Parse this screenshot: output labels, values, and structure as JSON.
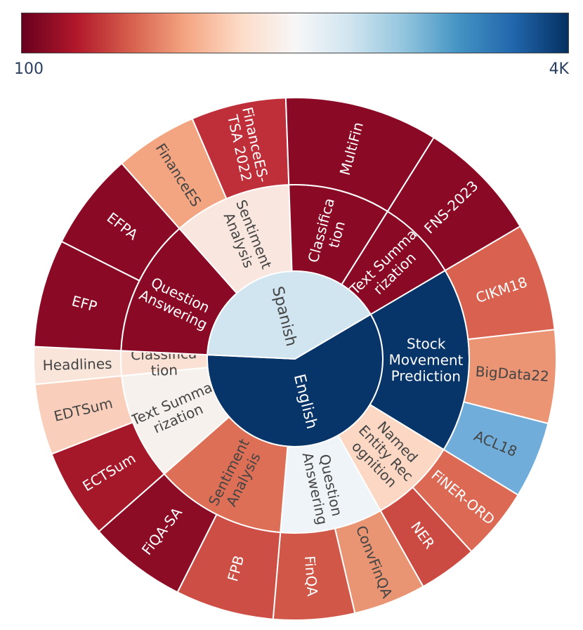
{
  "colorscale": {
    "min_label": "100",
    "max_label": "4K",
    "stops": [
      "#67001f",
      "#b2182b",
      "#d6604d",
      "#f4a582",
      "#fddbc7",
      "#f7f7f7",
      "#d1e5f0",
      "#92c5de",
      "#4393c3",
      "#2166ac",
      "#053061"
    ]
  },
  "chart_data": {
    "type": "sunburst",
    "title": "",
    "root": {
      "children": [
        {
          "label": "English",
          "fraction": 0.5922,
          "color": "#073469",
          "children": [
            {
              "label": "Stock Movement Prediction",
              "lines": [
                "Stock",
                "Movement",
                "Prediction"
              ],
              "fraction": 0.1719,
              "color": "#073469",
              "children": [
                {
                  "label": "CIKM18",
                  "fraction": 0.0668,
                  "color": "#d96150"
                },
                {
                  "label": "BigData22",
                  "fraction": 0.0577,
                  "color": "#eb9574"
                },
                {
                  "label": "ACL18",
                  "fraction": 0.0476,
                  "color": "#70addb"
                }
              ]
            },
            {
              "label": "Named Entity Recognition",
              "lines": [
                "Named",
                "Entity Rec",
                "ognition"
              ],
              "fraction": 0.0812,
              "color": "#fbd7c4",
              "children": [
                {
                  "label": "FiNER-ORD",
                  "fraction": 0.0448,
                  "color": "#dc6954"
                },
                {
                  "label": "NER",
                  "fraction": 0.0364,
                  "color": "#cb4a42"
                }
              ]
            },
            {
              "label": "Question Answering",
              "lines": [
                "Question",
                "Answering"
              ],
              "fraction": 0.095,
              "color": "#eef4f7",
              "children": [
                {
                  "label": "ConvFinQA",
                  "fraction": 0.0448,
                  "color": "#e99574"
                },
                {
                  "label": "FinQA",
                  "fraction": 0.0502,
                  "color": "#d15848"
                }
              ]
            },
            {
              "label": "Sentiment Analysis",
              "lines": [
                "Sentiment",
                "Analysis"
              ],
              "fraction": 0.1218,
              "color": "#dd6f56",
              "children": [
                {
                  "label": "FPB",
                  "fraction": 0.0609,
                  "color": "#cd4e45"
                },
                {
                  "label": "FiQA-SA",
                  "fraction": 0.0609,
                  "color": "#8c0c26"
                }
              ]
            },
            {
              "label": "Text Summarization",
              "lines": [
                "Text Summa",
                "rization"
              ],
              "fraction": 0.0993,
              "color": "#f7f1ee",
              "children": [
                {
                  "label": "ECTSum",
                  "fraction": 0.0555,
                  "color": "#a51829"
                },
                {
                  "label": "EDTSum",
                  "fraction": 0.0438,
                  "color": "#f9cfbb"
                }
              ]
            },
            {
              "label": "Classification",
              "lines": [
                "Classifica",
                "tion"
              ],
              "fraction": 0.023,
              "color": "#fbe1d3",
              "children": [
                {
                  "label": "Headlines",
                  "fraction": 0.023,
                  "color": "#fae5da"
                }
              ]
            }
          ]
        },
        {
          "label": "Spanish",
          "fraction": 0.4078,
          "color": "#d1e5f0",
          "children": [
            {
              "label": "Question Answering",
              "lines": [
                "Question",
                "Answering"
              ],
              "fraction": 0.1271,
              "color": "#8a0a26",
              "children": [
                {
                  "label": "EFP",
                  "fraction": 0.0667,
                  "color": "#8a0a26"
                },
                {
                  "label": "EFPA",
                  "fraction": 0.0604,
                  "color": "#8a0a26"
                }
              ]
            },
            {
              "label": "Sentiment Analysis",
              "lines": [
                "Sentiment",
                "Analysis"
              ],
              "fraction": 0.1098,
              "color": "#f9e6de",
              "children": [
                {
                  "label": "FinanceES",
                  "fraction": 0.0511,
                  "color": "#f2a580"
                },
                {
                  "label": "FinanceES-TSA 2022",
                  "lines": [
                    "FinanceES-",
                    "TSA 2022"
                  ],
                  "fraction": 0.0587,
                  "color": "#bf2f3a"
                }
              ]
            },
            {
              "label": "Classification",
              "lines": [
                "Classifica",
                "tion"
              ],
              "fraction": 0.0948,
              "color": "#8a0a26",
              "children": [
                {
                  "label": "MultiFin",
                  "fraction": 0.0948,
                  "color": "#8a0a26"
                }
              ]
            },
            {
              "label": "Text Summarization",
              "lines": [
                "Text Summa",
                "rization"
              ],
              "fraction": 0.0761,
              "color": "#8a0a26",
              "children": [
                {
                  "label": "FNS-2023",
                  "fraction": 0.0761,
                  "color": "#8a0a26"
                }
              ]
            }
          ]
        }
      ]
    }
  }
}
